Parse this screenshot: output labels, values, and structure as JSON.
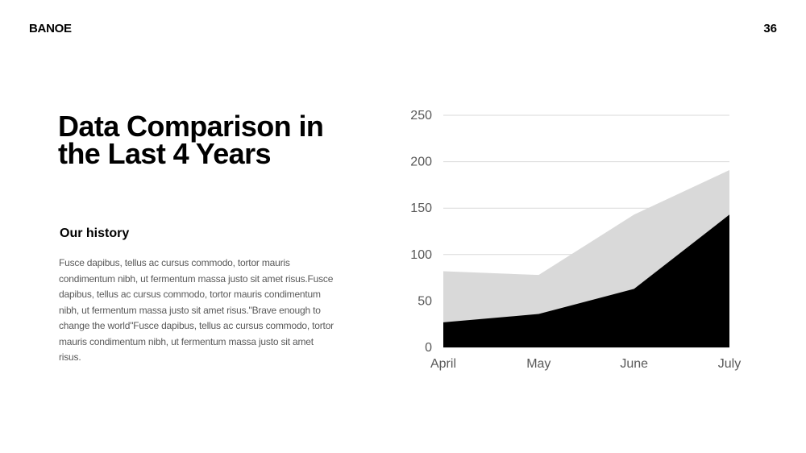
{
  "header": {
    "brand": "BANOE",
    "page_number": "36"
  },
  "main": {
    "title": "Data Comparison in the Last 4 Years",
    "subtitle": "Our history",
    "body": "Fusce dapibus, tellus ac cursus commodo, tortor mauris condimentum nibh, ut fermentum massa justo sit amet risus.Fusce dapibus, tellus ac cursus commodo, tortor mauris condimentum nibh, ut fermentum massa justo sit amet risus.\"Brave enough to change the world\"Fusce dapibus, tellus ac cursus commodo, tortor mauris condimentum nibh, ut fermentum massa justo sit amet risus."
  },
  "chart_data": {
    "type": "area",
    "stacked": false,
    "categories": [
      "April",
      "May",
      "June",
      "July"
    ],
    "series": [
      {
        "values": [
          82,
          78,
          143,
          191
        ],
        "color": "#d9d9d9"
      },
      {
        "values": [
          27,
          36,
          63,
          143
        ],
        "color": "#000000"
      }
    ],
    "ylim": [
      0,
      250
    ],
    "yticks": [
      0,
      50,
      100,
      150,
      200,
      250
    ],
    "grid": true,
    "gridline_color": "#d9d9d9",
    "tick_label_color": "#595959",
    "legend": "none"
  }
}
